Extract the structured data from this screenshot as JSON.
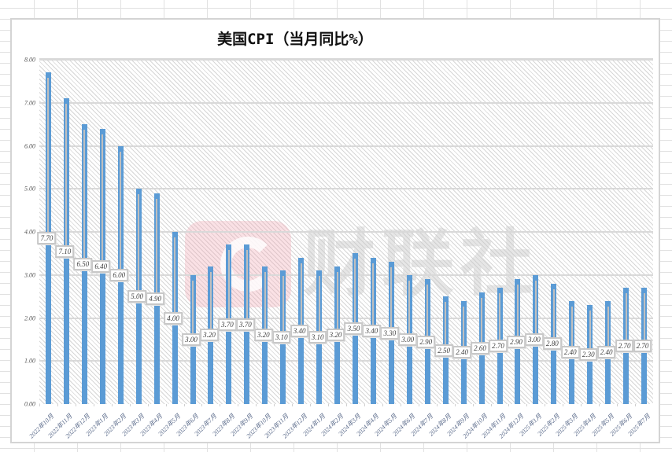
{
  "chart": {
    "title": "美国CPI（当月同比%）",
    "watermark": "财联社",
    "y_ticks": [
      "0.00",
      "1.00",
      "2.00",
      "3.00",
      "4.00",
      "5.00",
      "6.00",
      "7.00",
      "8.00"
    ],
    "colors": {
      "bar": "#5b9bd5",
      "leader": "#bfbfbf",
      "grid": "#d9d9d9"
    }
  },
  "chart_data": {
    "type": "bar",
    "title": "美国CPI（当月同比%）",
    "xlabel": "",
    "ylabel": "",
    "ylim": [
      0,
      8
    ],
    "grid": true,
    "legend": "none",
    "categories": [
      "2022年10月",
      "2022年11月",
      "2022年12月",
      "2023年1月",
      "2023年2月",
      "2023年3月",
      "2023年4月",
      "2023年5月",
      "2023年6月",
      "2023年7月",
      "2023年8月",
      "2023年9月",
      "2023年10月",
      "2023年11月",
      "2023年12月",
      "2024年1月",
      "2024年2月",
      "2024年3月",
      "2024年4月",
      "2024年5月",
      "2024年6月",
      "2024年7月",
      "2024年8月",
      "2024年9月",
      "2024年10月",
      "2024年11月",
      "2024年12月",
      "2025年1月",
      "2025年2月",
      "2025年3月",
      "2025年4月",
      "2025年5月",
      "2025年6月",
      "2025年7月"
    ],
    "values": [
      7.7,
      7.1,
      6.5,
      6.4,
      6.0,
      5.0,
      4.9,
      4.0,
      3.0,
      3.2,
      3.7,
      3.7,
      3.2,
      3.1,
      3.4,
      3.1,
      3.2,
      3.5,
      3.4,
      3.3,
      3.0,
      2.9,
      2.5,
      2.4,
      2.6,
      2.7,
      2.9,
      3.0,
      2.8,
      2.4,
      2.3,
      2.4,
      2.7,
      2.7
    ],
    "data_labels": [
      "7.70",
      "7.10",
      "6.50",
      "6.40",
      "6.00",
      "5.00",
      "4.90",
      "4.00",
      "3.00",
      "3.20",
      "3.70",
      "3.70",
      "3.20",
      "3.10",
      "3.40",
      "3.10",
      "3.20",
      "3.50",
      "3.40",
      "3.30",
      "3.00",
      "2.90",
      "2.50",
      "2.40",
      "2.60",
      "2.70",
      "2.90",
      "3.00",
      "2.80",
      "2.40",
      "2.30",
      "2.40",
      "2.70",
      "2.70"
    ]
  }
}
